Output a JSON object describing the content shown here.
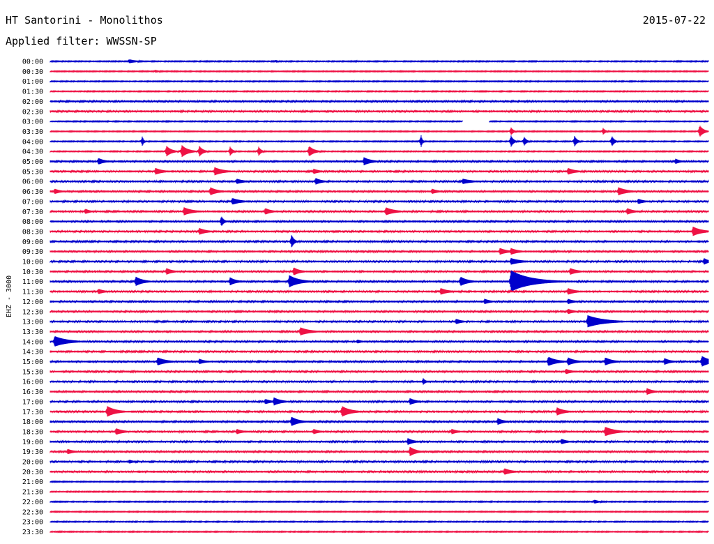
{
  "header": {
    "title": "HT Santorini - Monolithos",
    "date": "2015-07-22",
    "filter": "Applied filter: WWSSN-SP"
  },
  "chart_data": {
    "type": "line",
    "title": "HT Santorini - Monolithos",
    "ylabel": "EHZ - 3000",
    "row_labels": [
      "00:00",
      "00:30",
      "01:00",
      "01:30",
      "02:00",
      "02:30",
      "03:00",
      "03:30",
      "04:00",
      "04:30",
      "05:00",
      "05:30",
      "06:00",
      "06:30",
      "07:00",
      "07:30",
      "08:00",
      "08:30",
      "09:00",
      "09:30",
      "10:00",
      "10:30",
      "11:00",
      "11:30",
      "12:00",
      "12:30",
      "13:00",
      "13:30",
      "14:00",
      "14:30",
      "15:00",
      "15:30",
      "16:00",
      "16:30",
      "17:00",
      "17:30",
      "18:00",
      "18:30",
      "19:00",
      "19:30",
      "20:00",
      "20:30",
      "21:00",
      "21:30",
      "22:00",
      "22:30",
      "23:00",
      "23:30"
    ],
    "colors": [
      "#0000cc",
      "#ee1144"
    ],
    "x_range_minutes": [
      0,
      30
    ],
    "grid": false,
    "noise_level": [
      1,
      1,
      0,
      0,
      2,
      2,
      1,
      1,
      1,
      1,
      2,
      2,
      2,
      2,
      2,
      2,
      2,
      2,
      2,
      2,
      2,
      2,
      2,
      2,
      2,
      2,
      2,
      2,
      2,
      2,
      2,
      2,
      2,
      2,
      2,
      2,
      2,
      2,
      2,
      2,
      2,
      2,
      1,
      1,
      1,
      1,
      1,
      1
    ],
    "gaps": [
      {
        "row": 6,
        "from_min": 18.8,
        "to_min": 20.0
      }
    ],
    "events": [
      {
        "row": 0,
        "t": 3.6,
        "amp": 3,
        "dur": 0.6
      },
      {
        "row": 0,
        "t": 10.3,
        "amp": 2,
        "dur": 0.2
      },
      {
        "row": 1,
        "t": 4.8,
        "amp": 2,
        "dur": 0.4
      },
      {
        "row": 7,
        "t": 21.0,
        "amp": 6,
        "dur": 0.2
      },
      {
        "row": 7,
        "t": 25.2,
        "amp": 5,
        "dur": 0.2
      },
      {
        "row": 7,
        "t": 29.6,
        "amp": 9,
        "dur": 0.3
      },
      {
        "row": 8,
        "t": 4.2,
        "amp": 8,
        "dur": 0.1
      },
      {
        "row": 8,
        "t": 16.9,
        "amp": 10,
        "dur": 0.1
      },
      {
        "row": 8,
        "t": 21.0,
        "amp": 9,
        "dur": 0.2
      },
      {
        "row": 8,
        "t": 21.6,
        "amp": 7,
        "dur": 0.2
      },
      {
        "row": 8,
        "t": 23.9,
        "amp": 8,
        "dur": 0.2
      },
      {
        "row": 8,
        "t": 25.6,
        "amp": 8,
        "dur": 0.2
      },
      {
        "row": 9,
        "t": 5.3,
        "amp": 8,
        "dur": 0.4
      },
      {
        "row": 9,
        "t": 6.0,
        "amp": 9,
        "dur": 0.5
      },
      {
        "row": 9,
        "t": 6.8,
        "amp": 8,
        "dur": 0.3
      },
      {
        "row": 9,
        "t": 8.2,
        "amp": 7,
        "dur": 0.2
      },
      {
        "row": 9,
        "t": 9.5,
        "amp": 7,
        "dur": 0.2
      },
      {
        "row": 9,
        "t": 11.8,
        "amp": 8,
        "dur": 0.4
      },
      {
        "row": 10,
        "t": 2.2,
        "amp": 5,
        "dur": 0.5
      },
      {
        "row": 10,
        "t": 14.3,
        "amp": 6,
        "dur": 0.6
      },
      {
        "row": 10,
        "t": 28.5,
        "amp": 4,
        "dur": 0.4
      },
      {
        "row": 11,
        "t": 4.8,
        "amp": 5,
        "dur": 0.6
      },
      {
        "row": 11,
        "t": 7.5,
        "amp": 6,
        "dur": 0.7
      },
      {
        "row": 11,
        "t": 12.0,
        "amp": 4,
        "dur": 0.5
      },
      {
        "row": 11,
        "t": 23.6,
        "amp": 5,
        "dur": 0.6
      },
      {
        "row": 12,
        "t": 8.5,
        "amp": 4,
        "dur": 0.6
      },
      {
        "row": 12,
        "t": 12.1,
        "amp": 5,
        "dur": 0.5
      },
      {
        "row": 12,
        "t": 18.8,
        "amp": 4,
        "dur": 0.8
      },
      {
        "row": 13,
        "t": 0.2,
        "amp": 4,
        "dur": 0.5
      },
      {
        "row": 13,
        "t": 7.3,
        "amp": 6,
        "dur": 0.6
      },
      {
        "row": 13,
        "t": 17.4,
        "amp": 4,
        "dur": 0.5
      },
      {
        "row": 13,
        "t": 25.9,
        "amp": 6,
        "dur": 0.7
      },
      {
        "row": 14,
        "t": 8.3,
        "amp": 5,
        "dur": 0.7
      },
      {
        "row": 14,
        "t": 26.8,
        "amp": 4,
        "dur": 0.5
      },
      {
        "row": 15,
        "t": 1.6,
        "amp": 4,
        "dur": 0.4
      },
      {
        "row": 15,
        "t": 6.1,
        "amp": 6,
        "dur": 0.7
      },
      {
        "row": 15,
        "t": 9.8,
        "amp": 5,
        "dur": 0.5
      },
      {
        "row": 15,
        "t": 15.3,
        "amp": 6,
        "dur": 0.7
      },
      {
        "row": 15,
        "t": 26.3,
        "amp": 5,
        "dur": 0.5
      },
      {
        "row": 16,
        "t": 7.8,
        "amp": 8,
        "dur": 0.2
      },
      {
        "row": 17,
        "t": 6.8,
        "amp": 5,
        "dur": 0.6
      },
      {
        "row": 17,
        "t": 29.3,
        "amp": 7,
        "dur": 0.7
      },
      {
        "row": 18,
        "t": 11.0,
        "amp": 10,
        "dur": 0.2
      },
      {
        "row": 19,
        "t": 20.5,
        "amp": 5,
        "dur": 0.6
      },
      {
        "row": 19,
        "t": 21.0,
        "amp": 5,
        "dur": 0.6
      },
      {
        "row": 20,
        "t": 21.0,
        "amp": 5,
        "dur": 0.8
      },
      {
        "row": 20,
        "t": 29.8,
        "amp": 5,
        "dur": 0.4
      },
      {
        "row": 21,
        "t": 5.3,
        "amp": 5,
        "dur": 0.5
      },
      {
        "row": 21,
        "t": 11.1,
        "amp": 6,
        "dur": 0.5
      },
      {
        "row": 21,
        "t": 23.7,
        "amp": 5,
        "dur": 0.6
      },
      {
        "row": 22,
        "t": 3.9,
        "amp": 7,
        "dur": 0.6
      },
      {
        "row": 22,
        "t": 8.2,
        "amp": 6,
        "dur": 0.5
      },
      {
        "row": 22,
        "t": 10.9,
        "amp": 9,
        "dur": 0.8
      },
      {
        "row": 22,
        "t": 18.7,
        "amp": 7,
        "dur": 0.6
      },
      {
        "row": 22,
        "t": 21.0,
        "amp": 16,
        "dur": 1.5
      },
      {
        "row": 23,
        "t": 2.2,
        "amp": 4,
        "dur": 0.5
      },
      {
        "row": 23,
        "t": 17.8,
        "amp": 5,
        "dur": 0.6
      },
      {
        "row": 23,
        "t": 23.6,
        "amp": 5,
        "dur": 0.6
      },
      {
        "row": 24,
        "t": 19.8,
        "amp": 4,
        "dur": 0.5
      },
      {
        "row": 24,
        "t": 23.6,
        "amp": 4,
        "dur": 0.5
      },
      {
        "row": 25,
        "t": 23.6,
        "amp": 4,
        "dur": 0.5
      },
      {
        "row": 26,
        "t": 18.5,
        "amp": 4,
        "dur": 0.5
      },
      {
        "row": 26,
        "t": 24.5,
        "amp": 9,
        "dur": 1.3
      },
      {
        "row": 27,
        "t": 11.4,
        "amp": 6,
        "dur": 0.8
      },
      {
        "row": 28,
        "t": 0.2,
        "amp": 8,
        "dur": 1.0
      },
      {
        "row": 28,
        "t": 14.0,
        "amp": 3,
        "dur": 0.4
      },
      {
        "row": 30,
        "t": 4.9,
        "amp": 6,
        "dur": 0.7
      },
      {
        "row": 30,
        "t": 6.8,
        "amp": 4,
        "dur": 0.5
      },
      {
        "row": 30,
        "t": 22.7,
        "amp": 7,
        "dur": 0.7
      },
      {
        "row": 30,
        "t": 23.6,
        "amp": 6,
        "dur": 0.6
      },
      {
        "row": 30,
        "t": 25.3,
        "amp": 6,
        "dur": 0.6
      },
      {
        "row": 30,
        "t": 28.0,
        "amp": 5,
        "dur": 0.5
      },
      {
        "row": 30,
        "t": 29.7,
        "amp": 8,
        "dur": 0.7
      },
      {
        "row": 31,
        "t": 23.5,
        "amp": 4,
        "dur": 0.5
      },
      {
        "row": 32,
        "t": 17.0,
        "amp": 5,
        "dur": 0.2
      },
      {
        "row": 33,
        "t": 27.2,
        "amp": 5,
        "dur": 0.5
      },
      {
        "row": 34,
        "t": 9.8,
        "amp": 4,
        "dur": 0.5
      },
      {
        "row": 34,
        "t": 10.2,
        "amp": 6,
        "dur": 0.6
      },
      {
        "row": 34,
        "t": 16.4,
        "amp": 5,
        "dur": 0.5
      },
      {
        "row": 35,
        "t": 2.6,
        "amp": 8,
        "dur": 0.7
      },
      {
        "row": 35,
        "t": 13.3,
        "amp": 8,
        "dur": 0.7
      },
      {
        "row": 35,
        "t": 23.1,
        "amp": 6,
        "dur": 0.6
      },
      {
        "row": 36,
        "t": 11.0,
        "amp": 7,
        "dur": 0.6
      },
      {
        "row": 36,
        "t": 20.4,
        "amp": 5,
        "dur": 0.5
      },
      {
        "row": 37,
        "t": 3.0,
        "amp": 5,
        "dur": 0.6
      },
      {
        "row": 37,
        "t": 8.5,
        "amp": 4,
        "dur": 0.5
      },
      {
        "row": 37,
        "t": 12.0,
        "amp": 4,
        "dur": 0.5
      },
      {
        "row": 37,
        "t": 18.3,
        "amp": 4,
        "dur": 0.5
      },
      {
        "row": 37,
        "t": 25.3,
        "amp": 7,
        "dur": 0.8
      },
      {
        "row": 38,
        "t": 16.3,
        "amp": 5,
        "dur": 0.5
      },
      {
        "row": 38,
        "t": 23.3,
        "amp": 4,
        "dur": 0.5
      },
      {
        "row": 39,
        "t": 0.8,
        "amp": 4,
        "dur": 0.5
      },
      {
        "row": 39,
        "t": 16.4,
        "amp": 7,
        "dur": 0.5
      },
      {
        "row": 40,
        "t": 3.6,
        "amp": 3,
        "dur": 0.4
      },
      {
        "row": 41,
        "t": 20.7,
        "amp": 5,
        "dur": 0.6
      },
      {
        "row": 44,
        "t": 24.8,
        "amp": 3,
        "dur": 0.4
      }
    ]
  }
}
